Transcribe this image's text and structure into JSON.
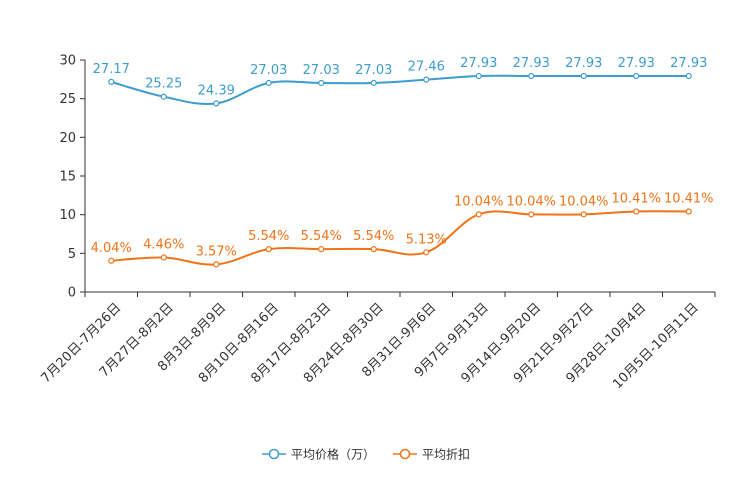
{
  "chart_data": {
    "type": "line",
    "title": "",
    "xlabel": "",
    "ylabel": "",
    "ylim": [
      0,
      30
    ],
    "yticks": [
      0,
      5,
      10,
      15,
      20,
      25,
      30
    ],
    "grid": false,
    "legend_position": "bottom-center",
    "categories": [
      "7月20日-7月26日",
      "7月27日-8月2日",
      "8月3日-8月9日",
      "8月10日-8月16日",
      "8月17日-8月23日",
      "8月24日-8月30日",
      "8月31日-9月6日",
      "9月7日-9月13日",
      "9月14日-9月20日",
      "9月21日-9月27日",
      "9月28日-10月4日",
      "10月5日-10月11日"
    ],
    "series": [
      {
        "name": "平均价格（万）",
        "color": "#3d9ccf",
        "values": [
          27.17,
          25.25,
          24.39,
          27.03,
          27.03,
          27.03,
          27.46,
          27.93,
          27.93,
          27.93,
          27.93,
          27.93
        ],
        "labels": [
          "27.17",
          "25.25",
          "24.39",
          "27.03",
          "27.03",
          "27.03",
          "27.46",
          "27.93",
          "27.93",
          "27.93",
          "27.93",
          "27.93"
        ]
      },
      {
        "name": "平均折扣",
        "color": "#f07317",
        "values": [
          4.04,
          4.46,
          3.57,
          5.54,
          5.54,
          5.54,
          5.13,
          10.04,
          10.04,
          10.04,
          10.41,
          10.41
        ],
        "labels": [
          "4.04%",
          "4.46%",
          "3.57%",
          "5.54%",
          "5.54%",
          "5.54%",
          "5.13%",
          "10.04%",
          "10.04%",
          "10.04%",
          "10.41%",
          "10.41%"
        ]
      }
    ]
  }
}
